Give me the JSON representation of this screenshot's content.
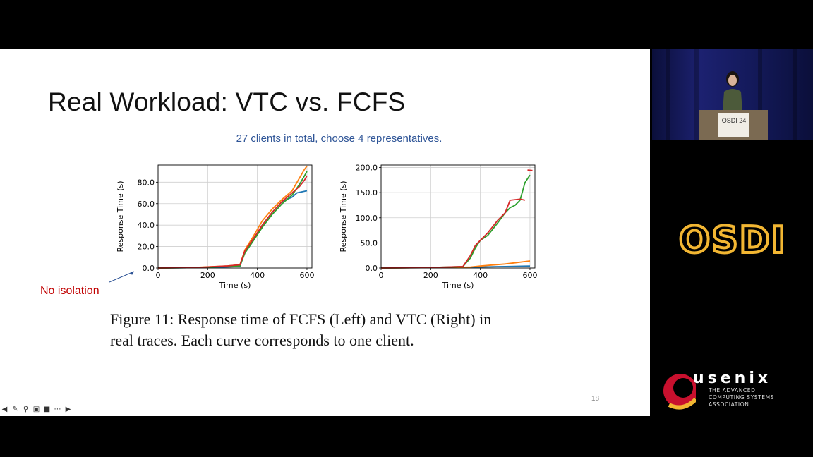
{
  "slide": {
    "title": "Real Workload: VTC vs. FCFS",
    "subtitle": "27 clients in total, choose 4 representatives.",
    "annotation": "No isolation",
    "caption_line1": "Figure 11: Response time of FCFS (Left) and VTC (Right) in",
    "caption_line2": "real traces. Each curve corresponds to one client.",
    "page_number": "18"
  },
  "toolbar": {
    "icons": [
      "prev-icon",
      "pen-icon",
      "zoom-icon",
      "subtitles-icon",
      "camera-icon",
      "more-icon",
      "next-icon"
    ]
  },
  "video": {
    "sign_text": "OSDI 24"
  },
  "logos": {
    "osdi": "OSDI 24",
    "usenix_word": "usenix",
    "usenix_tag_1": "THE ADVANCED",
    "usenix_tag_2": "COMPUTING SYSTEMS",
    "usenix_tag_3": "ASSOCIATION"
  },
  "chart_data": [
    {
      "type": "line",
      "xlabel": "Time (s)",
      "ylabel": "Response Time (s)",
      "xlim": [
        0,
        620
      ],
      "ylim": [
        0,
        96
      ],
      "xticks": [
        "0",
        "200",
        "400",
        "600"
      ],
      "yticks": [
        "0.0",
        "20.0",
        "40.0",
        "60.0",
        "80.0"
      ],
      "ytick_values": [
        0,
        20,
        40,
        60,
        80
      ],
      "xtick_values": [
        0,
        200,
        400,
        600
      ],
      "grid": true,
      "series": [
        {
          "color": "#1f77b4",
          "x": [
            0,
            150,
            280,
            330,
            350,
            380,
            420,
            460,
            500,
            540,
            560,
            600
          ],
          "y": [
            0,
            0.3,
            1,
            1.5,
            15,
            25,
            40,
            52,
            62,
            66,
            70,
            72
          ]
        },
        {
          "color": "#ff7f0e",
          "x": [
            0,
            150,
            280,
            330,
            350,
            380,
            420,
            460,
            500,
            540,
            570,
            590,
            600
          ],
          "y": [
            0,
            0.5,
            2,
            3,
            17,
            28,
            44,
            55,
            64,
            72,
            84,
            92,
            95
          ]
        },
        {
          "color": "#2ca02c",
          "x": [
            0,
            150,
            280,
            330,
            350,
            380,
            420,
            460,
            500,
            540,
            570,
            590,
            600
          ],
          "y": [
            0,
            0.3,
            1.5,
            2,
            14,
            24,
            38,
            50,
            60,
            68,
            78,
            86,
            90
          ]
        },
        {
          "color": "#d62728",
          "x": [
            0,
            150,
            280,
            330,
            350,
            380,
            420,
            460,
            500,
            540,
            570,
            590,
            600
          ],
          "y": [
            0,
            0.4,
            2,
            3,
            16,
            26,
            40,
            52,
            62,
            70,
            76,
            82,
            86
          ]
        }
      ]
    },
    {
      "type": "line",
      "xlabel": "Time (s)",
      "ylabel": "Response Time (s)",
      "xlim": [
        0,
        620
      ],
      "ylim": [
        0,
        205
      ],
      "xticks": [
        "0",
        "200",
        "400",
        "600"
      ],
      "yticks": [
        "0.0",
        "50.0",
        "100.0",
        "150.0",
        "200.0"
      ],
      "ytick_values": [
        0,
        50,
        100,
        150,
        200
      ],
      "xtick_values": [
        0,
        200,
        400,
        600
      ],
      "grid": true,
      "series": [
        {
          "color": "#1f77b4",
          "x": [
            0,
            300,
            360,
            400,
            450,
            500,
            550,
            600
          ],
          "y": [
            0,
            1,
            1.5,
            2,
            2.5,
            3,
            3.5,
            4
          ]
        },
        {
          "color": "#ff7f0e",
          "x": [
            0,
            300,
            360,
            400,
            450,
            500,
            550,
            600
          ],
          "y": [
            0,
            1,
            2,
            4,
            6,
            8,
            11,
            14
          ]
        },
        {
          "color": "#2ca02c",
          "x": [
            0,
            200,
            330,
            360,
            380,
            400,
            430,
            470,
            500,
            520,
            540,
            560,
            580,
            600
          ],
          "y": [
            0,
            1,
            3,
            20,
            40,
            55,
            65,
            90,
            110,
            120,
            125,
            135,
            170,
            185
          ]
        },
        {
          "color": "#d62728",
          "x": [
            0,
            200,
            330,
            360,
            380,
            400,
            430,
            470,
            500,
            520,
            560,
            580
          ],
          "y": [
            0,
            1,
            3,
            25,
            45,
            55,
            70,
            95,
            110,
            135,
            137,
            135
          ]
        },
        {
          "color": "#d62728",
          "x": [
            590,
            610
          ],
          "y": [
            195,
            194
          ]
        }
      ]
    }
  ]
}
